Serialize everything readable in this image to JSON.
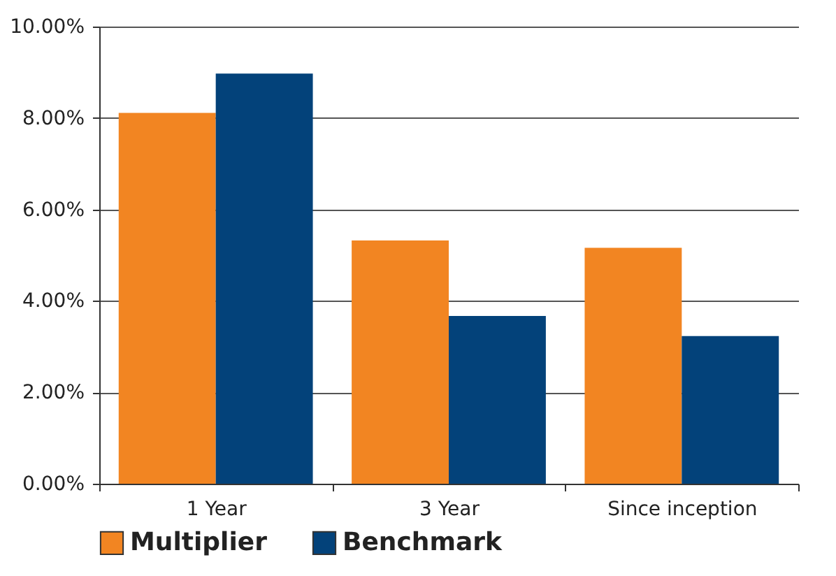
{
  "chart_data": {
    "type": "bar",
    "categories": [
      "1 Year",
      "3 Year",
      "Since inception"
    ],
    "series": [
      {
        "name": "Multiplier",
        "color": "#f28522",
        "values": [
          8.11,
          5.32,
          5.16
        ]
      },
      {
        "name": "Benchmark",
        "color": "#03427a",
        "values": [
          8.97,
          3.67,
          3.23
        ]
      }
    ],
    "ylim": [
      0,
      10
    ],
    "yticks": [
      {
        "value": 0,
        "label": "0.00%"
      },
      {
        "value": 2,
        "label": "2.00%"
      },
      {
        "value": 4,
        "label": "4.00%"
      },
      {
        "value": 6,
        "label": "6.00%"
      },
      {
        "value": 8,
        "label": "8.00%"
      },
      {
        "value": 10,
        "label": "10.00%"
      }
    ],
    "grid": "y",
    "legend": "bottom"
  }
}
